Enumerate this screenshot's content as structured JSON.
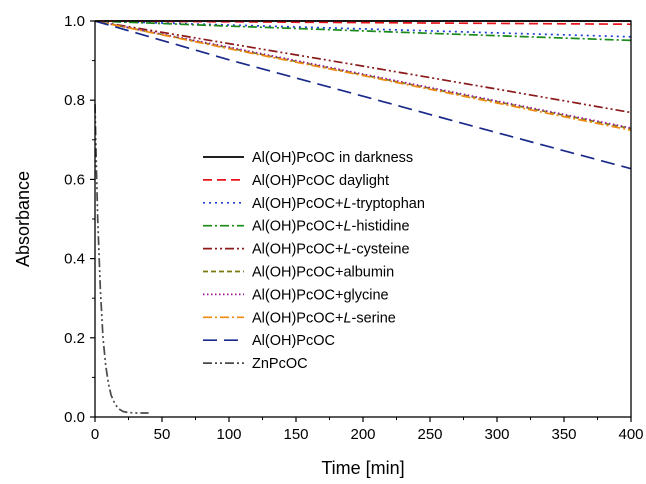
{
  "chart_data": {
    "type": "line",
    "xlabel": "Time [min]",
    "ylabel": "Absorbance",
    "xlim": [
      0,
      400
    ],
    "ylim": [
      0.0,
      1.0
    ],
    "x_ticks": [
      0,
      50,
      100,
      150,
      200,
      250,
      300,
      350,
      400
    ],
    "y_ticks": [
      "0.0",
      "0.2",
      "0.4",
      "0.6",
      "0.8",
      "1.0"
    ],
    "grid": false,
    "legend_position": "center",
    "series": [
      {
        "name": "Al(OH)PcOC in darkness",
        "name_prefix": "Al(OH)PcOC in darkness",
        "name_italic": "",
        "name_suffix": "",
        "color": "#000000",
        "dash": "solid",
        "x": [
          0,
          400
        ],
        "y": [
          1.0,
          1.0
        ]
      },
      {
        "name": "Al(OH)PcOC daylight",
        "name_prefix": "Al(OH)PcOC daylight",
        "name_italic": "",
        "name_suffix": "",
        "color": "#e8141c",
        "dash": "dash",
        "x": [
          0,
          400
        ],
        "y": [
          1.0,
          0.992
        ]
      },
      {
        "name": "Al(OH)PcOC+L-tryptophan",
        "name_prefix": "Al(OH)PcOC+",
        "name_italic": "L",
        "name_suffix": "-tryptophan",
        "color": "#1f3fd6",
        "dash": "dot",
        "x": [
          0,
          100,
          200,
          300,
          400
        ],
        "y": [
          1.0,
          0.99,
          0.98,
          0.97,
          0.96
        ]
      },
      {
        "name": "Al(OH)PcOC+L-histidine",
        "name_prefix": "Al(OH)PcOC+",
        "name_italic": "L",
        "name_suffix": "-histidine",
        "color": "#1a8a1a",
        "dash": "dashdot",
        "x": [
          0,
          100,
          200,
          300,
          400
        ],
        "y": [
          1.0,
          0.987,
          0.975,
          0.963,
          0.951
        ]
      },
      {
        "name": "Al(OH)PcOC+L-cysteine",
        "name_prefix": "Al(OH)PcOC+",
        "name_italic": "L",
        "name_suffix": "-cysteine",
        "color": "#8b1a1a",
        "dash": "dashdotdot",
        "x": [
          0,
          100,
          200,
          300,
          400
        ],
        "y": [
          1.0,
          0.943,
          0.886,
          0.828,
          0.769
        ]
      },
      {
        "name": "Al(OH)PcOC+albumin",
        "name_prefix": "Al(OH)PcOC+albumin",
        "name_italic": "",
        "name_suffix": "",
        "color": "#7a7a10",
        "dash": "shortdash",
        "x": [
          0,
          100,
          200,
          300,
          400
        ],
        "y": [
          1.0,
          0.932,
          0.864,
          0.796,
          0.728
        ]
      },
      {
        "name": "Al(OH)PcOC+glycine",
        "name_prefix": "Al(OH)PcOC+glycine",
        "name_italic": "",
        "name_suffix": "",
        "color": "#9a1a9a",
        "dash": "shortdot",
        "x": [
          0,
          100,
          200,
          300,
          400
        ],
        "y": [
          1.0,
          0.934,
          0.866,
          0.798,
          0.73
        ]
      },
      {
        "name": "Al(OH)PcOC+L-serine",
        "name_prefix": "Al(OH)PcOC+",
        "name_italic": "L",
        "name_suffix": "-serine",
        "color": "#ee8a10",
        "dash": "dashdot",
        "x": [
          0,
          100,
          200,
          300,
          400
        ],
        "y": [
          1.0,
          0.93,
          0.862,
          0.793,
          0.724
        ]
      },
      {
        "name": "Al(OH)PcOC",
        "name_prefix": "Al(OH)PcOC",
        "name_italic": "",
        "name_suffix": "",
        "color": "#1a2a8a",
        "dash": "longdash",
        "x": [
          0,
          100,
          200,
          300,
          400
        ],
        "y": [
          1.0,
          0.902,
          0.81,
          0.718,
          0.627
        ]
      },
      {
        "name": "ZnPcOC",
        "name_prefix": "ZnPcOC",
        "name_italic": "",
        "name_suffix": "",
        "color": "#4a4a4a",
        "dash": "dashdotdot",
        "x": [
          0,
          1,
          2,
          4,
          6,
          8,
          10,
          12,
          15,
          18,
          21,
          25,
          30,
          35,
          40
        ],
        "y": [
          0.79,
          0.64,
          0.5,
          0.32,
          0.2,
          0.13,
          0.085,
          0.055,
          0.032,
          0.02,
          0.014,
          0.011,
          0.01,
          0.01,
          0.01
        ]
      }
    ]
  }
}
